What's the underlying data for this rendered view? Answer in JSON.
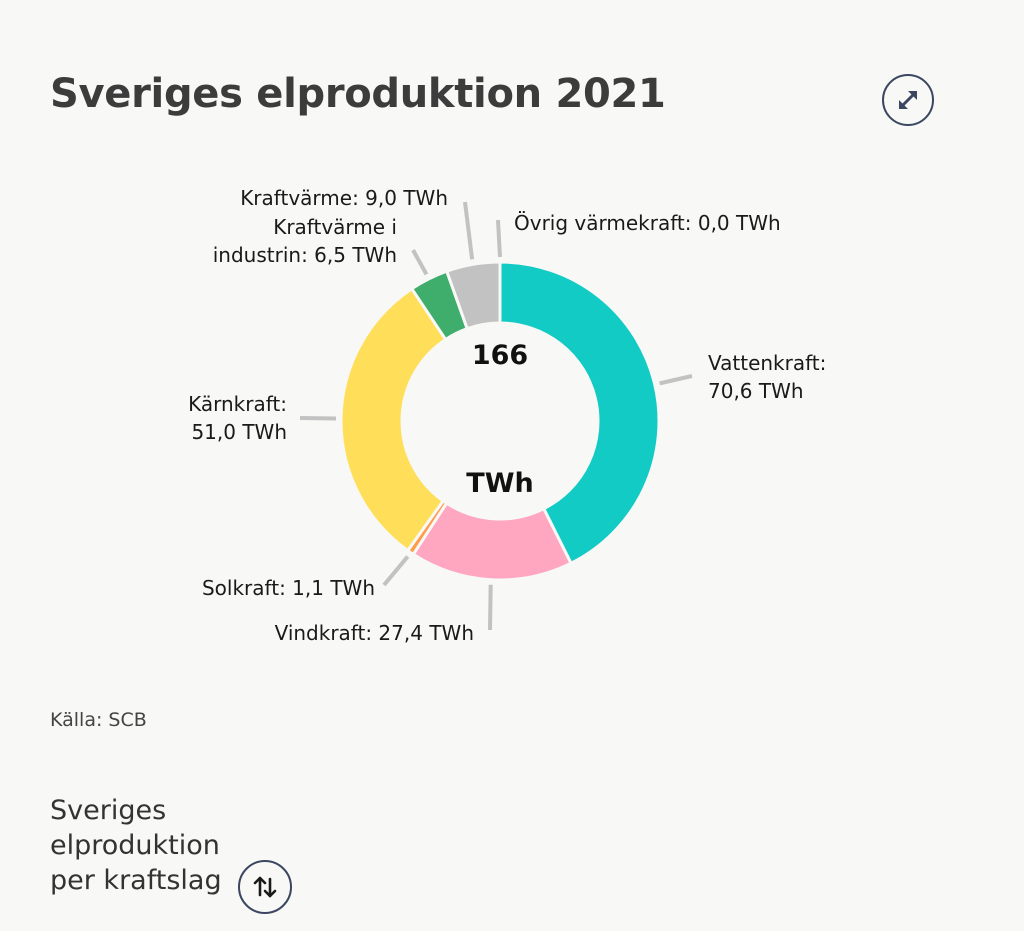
{
  "header": {
    "title": "Sveriges elproduktion 2021",
    "expand_icon": "expand-arrows-icon"
  },
  "chart_data": {
    "type": "pie",
    "variant": "donut",
    "title": "Sveriges elproduktion 2021",
    "center_value": "166",
    "center_unit": "TWh",
    "slices": [
      {
        "name": "Vattenkraft",
        "value": 70.6,
        "label_lines": [
          "Vattenkraft:",
          "70,6 TWh"
        ],
        "color": "#12cbc4"
      },
      {
        "name": "Vindkraft",
        "value": 27.4,
        "label_lines": [
          "Vindkraft: 27,4 TWh"
        ],
        "color": "#ffa6c0"
      },
      {
        "name": "Solkraft",
        "value": 1.1,
        "label_lines": [
          "Solkraft: 1,1 TWh"
        ],
        "color": "#ff9c4a"
      },
      {
        "name": "Kärnkraft",
        "value": 51.0,
        "label_lines": [
          "Kärnkraft:",
          "51,0 TWh"
        ],
        "color": "#ffdf59"
      },
      {
        "name": "Kraftvärme i industrin",
        "value": 6.5,
        "label_lines": [
          "Kraftvärme i",
          "industrin: 6,5 TWh"
        ],
        "color": "#3fad6b"
      },
      {
        "name": "Kraftvärme",
        "value": 9.0,
        "label_lines": [
          "Kraftvärme: 9,0 TWh"
        ],
        "color": "#c2c2c2"
      },
      {
        "name": "Övrig värmekraft",
        "value": 0.0,
        "label_lines": [
          "Övrig värmekraft: 0,0 TWh"
        ],
        "color": "#8a8a8a"
      }
    ],
    "leader_color": "#c2c2c2"
  },
  "footer": {
    "source": "Källa: SCB",
    "selector_label": "Sveriges elproduktion per kraftslag",
    "sort_icon": "sort-arrows-icon"
  }
}
